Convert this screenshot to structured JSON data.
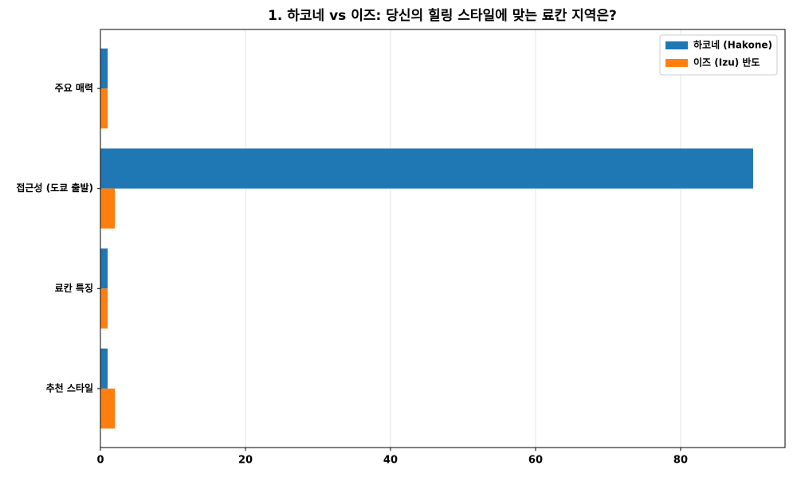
{
  "chart_data": {
    "type": "barh",
    "title": "1. 하코네 vs 이즈: 당신의 힐링 스타일에 맞는 료칸 지역은?",
    "categories": [
      "주요 매력",
      "접근성 (도쿄 출발)",
      "료칸 특징",
      "추천 스타일"
    ],
    "series": [
      {
        "name": "하코네 (Hakone)",
        "color": "#1f77b4",
        "values": [
          1,
          90,
          1,
          1
        ]
      },
      {
        "name": "이즈 (Izu) 반도",
        "color": "#ff7f0e",
        "values": [
          1,
          2,
          1,
          2
        ]
      }
    ],
    "xlim": [
      0,
      94.4
    ],
    "xticks": [
      0,
      20,
      40,
      60,
      80
    ],
    "grid": true,
    "legend": "upper right"
  }
}
